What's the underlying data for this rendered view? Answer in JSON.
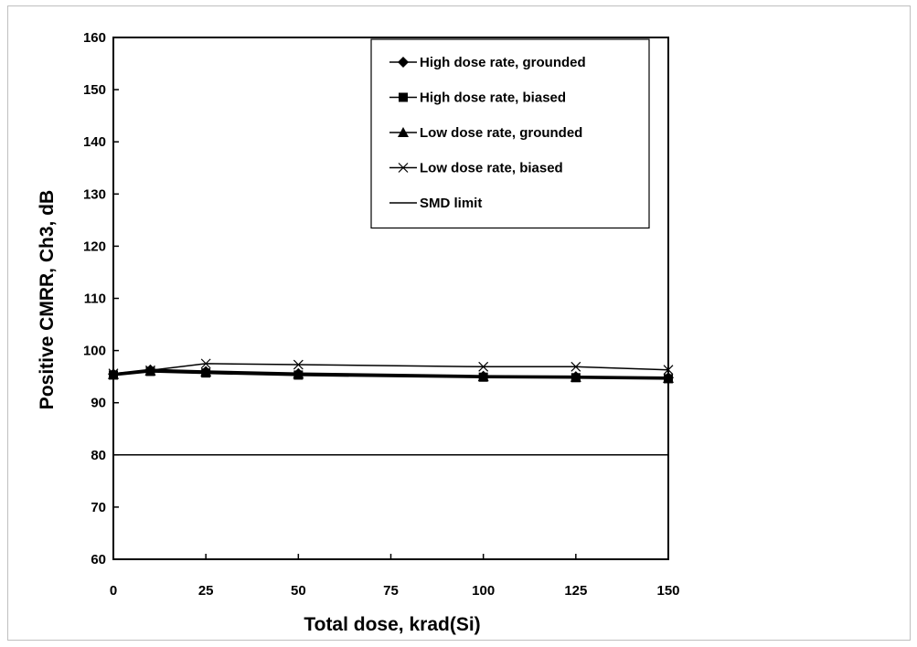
{
  "chart_data": {
    "type": "line",
    "title": "",
    "xlabel": "Total dose, krad(Si)",
    "ylabel": "Positive CMRR, Ch3, dB",
    "xlim": [
      0,
      150
    ],
    "ylim": [
      60,
      160
    ],
    "x_ticks": [
      0,
      25,
      50,
      75,
      100,
      125,
      150
    ],
    "y_ticks": [
      60,
      70,
      80,
      90,
      100,
      110,
      120,
      130,
      140,
      150,
      160
    ],
    "grid": false,
    "legend_position": "top-right",
    "series": [
      {
        "name": "High dose rate, grounded",
        "marker": "diamond",
        "color": "#000000",
        "x": [
          0,
          10,
          25,
          50,
          100,
          125,
          150
        ],
        "y": [
          95.5,
          96.3,
          96.0,
          95.6,
          95.1,
          95.0,
          94.8
        ]
      },
      {
        "name": "High dose rate, biased",
        "marker": "square",
        "color": "#000000",
        "x": [
          0,
          10,
          25,
          50,
          100,
          125,
          150
        ],
        "y": [
          95.3,
          96.0,
          95.7,
          95.3,
          94.9,
          94.8,
          94.6
        ]
      },
      {
        "name": "Low dose rate, grounded",
        "marker": "triangle",
        "color": "#000000",
        "x": [
          0,
          10,
          25,
          50,
          100,
          125,
          150
        ],
        "y": [
          95.4,
          96.1,
          95.9,
          95.5,
          95.0,
          94.9,
          94.7
        ]
      },
      {
        "name": "Low dose rate, biased",
        "marker": "x",
        "color": "#000000",
        "x": [
          0,
          10,
          25,
          50,
          100,
          125,
          150
        ],
        "y": [
          95.6,
          96.2,
          97.5,
          97.3,
          96.9,
          96.9,
          96.3
        ]
      },
      {
        "name": "SMD limit",
        "marker": "none",
        "color": "#000000",
        "x": [
          0,
          150
        ],
        "y": [
          80,
          80
        ]
      }
    ]
  }
}
